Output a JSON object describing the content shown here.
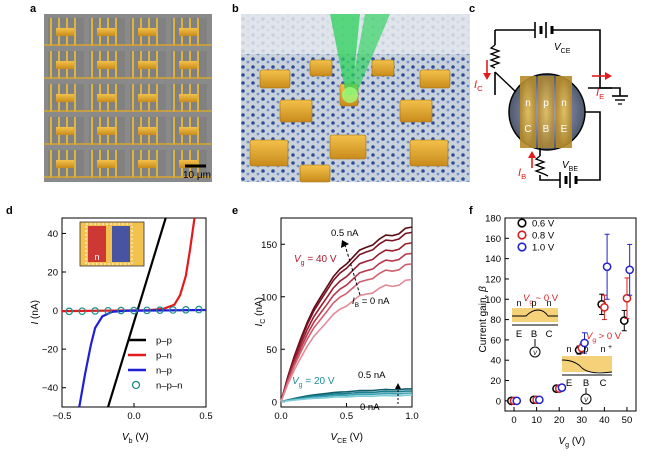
{
  "panels": {
    "a": {
      "label": "a",
      "scalebar": "10 μm"
    },
    "b": {
      "label": "b"
    },
    "c": {
      "label": "c",
      "vce": "V",
      "vce_sub": "CE",
      "vbe": "V",
      "vbe_sub": "BE",
      "ic": "I",
      "ic_sub": "C",
      "ie": "I",
      "ie_sub": "E",
      "ib": "I",
      "ib_sub": "B",
      "regions_top": [
        "n",
        "p",
        "n"
      ],
      "regions_bottom": [
        "C",
        "B",
        "E"
      ]
    },
    "d": {
      "label": "d",
      "inset_text": "n",
      "legend": [
        "p–p",
        "p–n",
        "n–p",
        "n–p–n"
      ]
    },
    "e": {
      "label": "e",
      "ann_top": "0.5 nA",
      "ann_vg40": "= 40 V",
      "ann_ib": "= 0 nA",
      "ann_vg20": "= 20 V",
      "ann_low_top": "0.5 nA",
      "ann_low_bot": "0 nA"
    },
    "f": {
      "label": "f",
      "legend": [
        "0.6 V",
        "0.8 V",
        "1.0 V"
      ],
      "ann_vg0": "~ 0 V",
      "ann_vg_gt0": "> 0 V",
      "sch1_top": [
        "n",
        "p",
        "n"
      ],
      "sch1_bot": [
        "E",
        "B",
        "C"
      ],
      "sch2_top": [
        "n",
        "p",
        "n",
        "+"
      ],
      "sch2_bot": [
        "E",
        "B",
        "C"
      ]
    }
  },
  "chart_data": [
    {
      "panel": "d",
      "type": "line",
      "xlabel": "V",
      "xlabel_sub": "b",
      "xlabel_unit": "(V)",
      "ylabel": "I",
      "ylabel_unit": "(nA)",
      "xlim": [
        -0.5,
        0.5
      ],
      "ylim": [
        -50,
        48
      ],
      "xticks": [
        "-0.5",
        "0.0",
        "0.5"
      ],
      "yticks": [
        "40",
        "20",
        "0",
        "-20",
        "-40"
      ],
      "series": [
        {
          "name": "p–p",
          "color": "#000000",
          "x": [
            -0.18,
            0.22
          ],
          "y": [
            -50,
            48
          ]
        },
        {
          "name": "p–n",
          "color": "#e31a1c",
          "x": [
            -0.5,
            0.1,
            0.2,
            0.28,
            0.32,
            0.36,
            0.39,
            0.42
          ],
          "y": [
            -0.3,
            0.2,
            0.8,
            3,
            8,
            18,
            32,
            48
          ]
        },
        {
          "name": "n–p",
          "color": "#1f1fd6",
          "x": [
            -0.38,
            -0.34,
            -0.3,
            -0.27,
            -0.22,
            -0.15,
            -0.05,
            0.5
          ],
          "y": [
            -50,
            -33,
            -18,
            -9,
            -3,
            -0.6,
            -0.1,
            0.3
          ]
        },
        {
          "name": "n–p–n",
          "color": "#1e8c8c",
          "x": [
            -0.45,
            -0.36,
            -0.27,
            -0.18,
            -0.09,
            0.0,
            0.09,
            0.18,
            0.27,
            0.36,
            0.45
          ],
          "y": [
            -0.4,
            -0.3,
            -0.2,
            -0.1,
            0,
            0,
            0.1,
            0.2,
            0.3,
            0.4,
            0.5
          ]
        }
      ]
    },
    {
      "panel": "e",
      "type": "line",
      "xlabel": "V",
      "xlabel_sub": "CE",
      "xlabel_unit": "(V)",
      "ylabel": "I",
      "ylabel_sub": "C",
      "ylabel_unit": "(nA)",
      "xlim": [
        0,
        1.0
      ],
      "ylim": [
        -5,
        175
      ],
      "xticks": [
        "0.0",
        "0.5",
        "1.0"
      ],
      "yticks": [
        "0",
        "50",
        "100",
        "150"
      ],
      "groups": [
        {
          "vg": 40,
          "ib_range": "0 to 0.5 nA",
          "final_values": [
            165,
            160,
            150,
            140,
            130,
            115
          ]
        },
        {
          "vg": 20,
          "ib_range": "0 to 0.5 nA",
          "final_values": [
            12,
            10,
            8,
            6
          ]
        }
      ]
    },
    {
      "panel": "f",
      "type": "scatter",
      "xlabel": "V",
      "xlabel_sub": "g",
      "xlabel_unit": "(V)",
      "ylabel": "Current gain, β",
      "xlim": [
        -4,
        54
      ],
      "ylim": [
        -10,
        180
      ],
      "xticks": [
        "0",
        "10",
        "20",
        "30",
        "40",
        "50"
      ],
      "yticks": [
        "0",
        "20",
        "40",
        "60",
        "80",
        "100",
        "120",
        "140",
        "160",
        "180"
      ],
      "series": [
        {
          "name": "0.6 V",
          "color": "#000000",
          "x": [
            0,
            10,
            20,
            30,
            40,
            50
          ],
          "y": [
            0,
            1,
            12,
            50,
            95,
            79
          ],
          "err": [
            0,
            0,
            2,
            4,
            10,
            10
          ]
        },
        {
          "name": "0.8 V",
          "color": "#d62020",
          "x": [
            0,
            10,
            20,
            30,
            40,
            50
          ],
          "y": [
            0,
            1,
            12,
            52,
            92,
            101
          ],
          "err": [
            0,
            0,
            2,
            4,
            12,
            20
          ]
        },
        {
          "name": "1.0 V",
          "color": "#2222cc",
          "x": [
            0,
            10,
            20,
            30,
            40,
            50
          ],
          "y": [
            0,
            1,
            13,
            57,
            132,
            129
          ],
          "err": [
            0,
            0,
            2,
            10,
            32,
            25
          ]
        }
      ]
    }
  ]
}
